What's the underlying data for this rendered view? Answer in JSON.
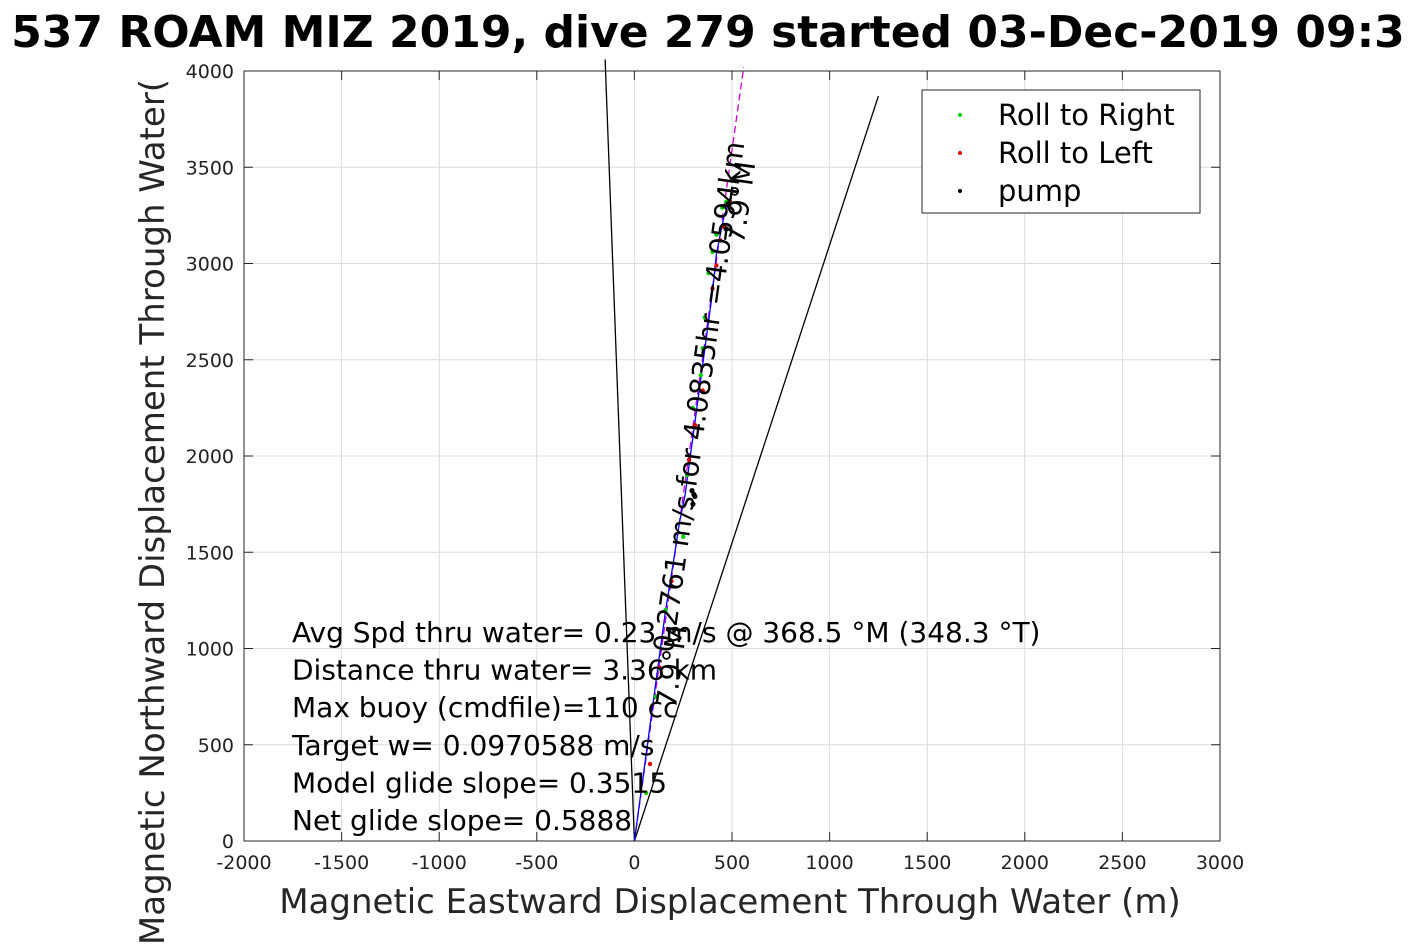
{
  "chart_data": {
    "type": "line",
    "title": "537 ROAM MIZ 2019, dive 279 started 03-Dec-2019 09:3",
    "xlabel": "Magnetic Eastward Displacement Through Water (m)",
    "ylabel": "Magnetic Northward Displacement Through Water(",
    "xlim": [
      -2000,
      3000
    ],
    "ylim": [
      0,
      4000
    ],
    "xticks": [
      -2000,
      -1500,
      -1000,
      -500,
      0,
      500,
      1000,
      1500,
      2000,
      2500,
      3000
    ],
    "yticks": [
      0,
      500,
      1000,
      1500,
      2000,
      2500,
      3000,
      3500,
      4000
    ],
    "xtick_labels": [
      "-2000",
      "-1500",
      "-1000",
      "-500",
      "0",
      "500",
      "1000",
      "1500",
      "2000",
      "2500",
      "3000"
    ],
    "ytick_labels": [
      "0",
      "500",
      "1000",
      "1500",
      "2000",
      "2500",
      "3000",
      "3500",
      "4000"
    ],
    "grid": true,
    "legend_position": "top-right",
    "legend": [
      {
        "label": "Roll to Right",
        "color": "#00cc00"
      },
      {
        "label": "Roll to Left",
        "color": "#dd0000"
      },
      {
        "label": "pump",
        "color": "#000000"
      }
    ],
    "track": {
      "color": "#0000ff",
      "x": [
        0,
        40,
        80,
        120,
        160,
        200,
        230,
        260,
        280,
        300,
        320,
        340,
        360,
        380,
        400,
        410,
        420,
        440,
        460,
        480,
        500
      ],
      "y": [
        0,
        300,
        600,
        900,
        1200,
        1450,
        1650,
        1800,
        1950,
        2100,
        2250,
        2400,
        2550,
        2700,
        2850,
        2950,
        3050,
        3150,
        3250,
        3300,
        3320
      ]
    },
    "heading_line": {
      "color": "#cc00cc",
      "x": [
        0,
        560
      ],
      "y": [
        0,
        4020
      ]
    },
    "reference_lines": [
      {
        "color": "#000000",
        "x": [
          0,
          -150
        ],
        "y": [
          0,
          4060
        ]
      },
      {
        "color": "#000000",
        "x": [
          0,
          1250
        ],
        "y": [
          0,
          3870
        ]
      }
    ],
    "roll_right_points": {
      "x": [
        60,
        110,
        160,
        250,
        270,
        300,
        340,
        350,
        360,
        380,
        400,
        420,
        450,
        470
      ],
      "y": [
        250,
        750,
        1200,
        1580,
        1900,
        2250,
        2420,
        2560,
        2720,
        2950,
        3060,
        3150,
        3290,
        3320
      ]
    },
    "roll_left_points": {
      "x": [
        80,
        130,
        190,
        280,
        310,
        350,
        400,
        420,
        440,
        460,
        490
      ],
      "y": [
        400,
        900,
        1350,
        1980,
        2160,
        2340,
        2870,
        2990,
        3120,
        3190,
        3320
      ]
    },
    "pump_points": {
      "x": [
        300,
        305,
        295,
        310,
        470,
        480
      ],
      "y": [
        1750,
        1800,
        1820,
        1790,
        3180,
        3310
      ]
    },
    "annotations": [
      {
        "text": "0.2761 m/s for 4.0835hr =4.0594km",
        "x": 380,
        "y": 2300,
        "rotation": -82
      },
      {
        "text": "7.9°M",
        "x": 590,
        "y": 3310,
        "rotation": -82
      },
      {
        "text": "7.9°M",
        "x": 240,
        "y": 900,
        "rotation": -82
      }
    ],
    "stats": [
      "Avg Spd thru water= 0.23 m/s @ 368.5 °M (348.3 °T)",
      "Distance thru water= 3.36 km",
      "Max buoy (cmdfile)=110 cc",
      "Target w= 0.0970588 m/s",
      "Model glide slope= 0.3515",
      "Net glide slope= 0.5888"
    ]
  }
}
